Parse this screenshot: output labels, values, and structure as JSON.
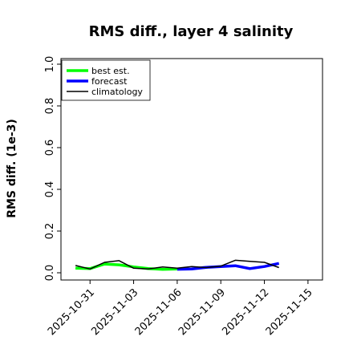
{
  "chart_data": {
    "type": "line",
    "title": "RMS diff., layer 4 salinity",
    "xlabel": "",
    "ylabel": "RMS diff. (1e-3)",
    "xlim": [
      "2025-10-29",
      "2025-11-16"
    ],
    "ylim": [
      0.0,
      1.0
    ],
    "yticks": [
      0.0,
      0.2,
      0.4,
      0.6,
      0.8,
      1.0
    ],
    "ytick_labels": [
      "0.0",
      "0.2",
      "0.4",
      "0.6",
      "0.8",
      "1.0"
    ],
    "xticks": [
      "2025-10-31",
      "2025-11-03",
      "2025-11-06",
      "2025-11-09",
      "2025-11-12",
      "2025-11-15"
    ],
    "highlighted_xtick": "2025-11-06",
    "highlight_color": "#228b22",
    "grid": false,
    "legend_position": "top-left",
    "series": [
      {
        "name": "best est.",
        "color": "#00ff00",
        "linewidth": 3.5,
        "x": [
          "2025-10-30",
          "2025-10-31",
          "2025-11-01",
          "2025-11-02",
          "2025-11-03",
          "2025-11-04",
          "2025-11-05",
          "2025-11-06"
        ],
        "values": [
          0.022,
          0.02,
          0.042,
          0.038,
          0.028,
          0.02,
          0.016,
          0.018
        ]
      },
      {
        "name": "forecast",
        "color": "#0000ff",
        "linewidth": 3.5,
        "x": [
          "2025-11-06",
          "2025-11-07",
          "2025-11-08",
          "2025-11-09",
          "2025-11-10",
          "2025-11-11",
          "2025-11-12",
          "2025-11-13"
        ],
        "values": [
          0.017,
          0.018,
          0.026,
          0.03,
          0.034,
          0.02,
          0.03,
          0.045
        ]
      },
      {
        "name": "climatology",
        "color": "#000000",
        "linewidth": 1.5,
        "x": [
          "2025-10-30",
          "2025-10-31",
          "2025-11-01",
          "2025-11-02",
          "2025-11-03",
          "2025-11-04",
          "2025-11-05",
          "2025-11-06",
          "2025-11-07",
          "2025-11-08",
          "2025-11-09",
          "2025-11-10",
          "2025-11-11",
          "2025-11-12",
          "2025-11-13"
        ],
        "values": [
          0.035,
          0.018,
          0.05,
          0.058,
          0.022,
          0.018,
          0.028,
          0.022,
          0.03,
          0.025,
          0.032,
          0.06,
          0.055,
          0.05,
          0.025
        ]
      }
    ]
  }
}
